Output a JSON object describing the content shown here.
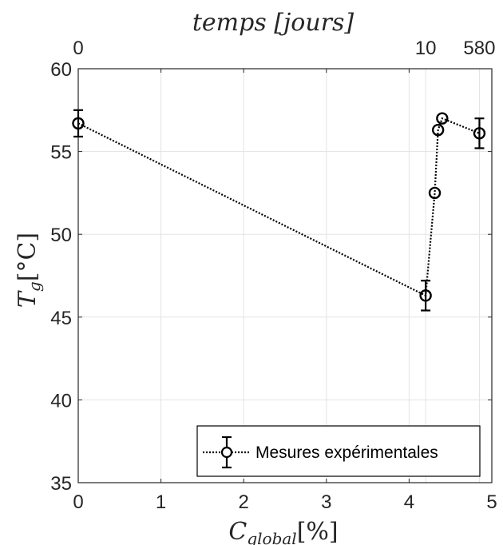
{
  "chart_data": {
    "type": "line",
    "title": "",
    "xlabel": "C_global[%]",
    "ylabel": "T_g[°C]",
    "top_axis_label": "temps [jours]",
    "xlim": [
      0,
      5
    ],
    "ylim": [
      35,
      60
    ],
    "x_ticks": [
      "0",
      "1",
      "2",
      "3",
      "4",
      "5"
    ],
    "y_ticks": [
      "35",
      "40",
      "45",
      "50",
      "55",
      "60"
    ],
    "x_tick_values": [
      0,
      1,
      2,
      3,
      4,
      5
    ],
    "y_tick_values": [
      35,
      40,
      45,
      50,
      55,
      60
    ],
    "top_ticks": [
      {
        "label": "0",
        "x": 0
      },
      {
        "label": "10",
        "x": 4.2
      },
      {
        "label": "580",
        "x": 4.85
      }
    ],
    "grid": true,
    "legend_position": "bottom-right",
    "series": [
      {
        "name": "Mesures expérimentales",
        "color": "#000000",
        "marker": "circle",
        "linestyle": "dotted",
        "x": [
          0.0,
          4.2,
          4.31,
          4.35,
          4.4,
          4.85
        ],
        "y": [
          56.7,
          46.3,
          52.5,
          56.3,
          57.0,
          56.1
        ],
        "error": [
          0.8,
          0.9,
          0.0,
          0.0,
          0.0,
          0.9
        ]
      }
    ]
  },
  "labels": {
    "top_axis": "temps [jours]",
    "x_main": "C",
    "x_sub": "global",
    "x_unit": "[%]",
    "y_main": "T",
    "y_sub": "g",
    "y_unit": "[°C]"
  },
  "legend": {
    "entry": "Mesures expérimentales"
  }
}
